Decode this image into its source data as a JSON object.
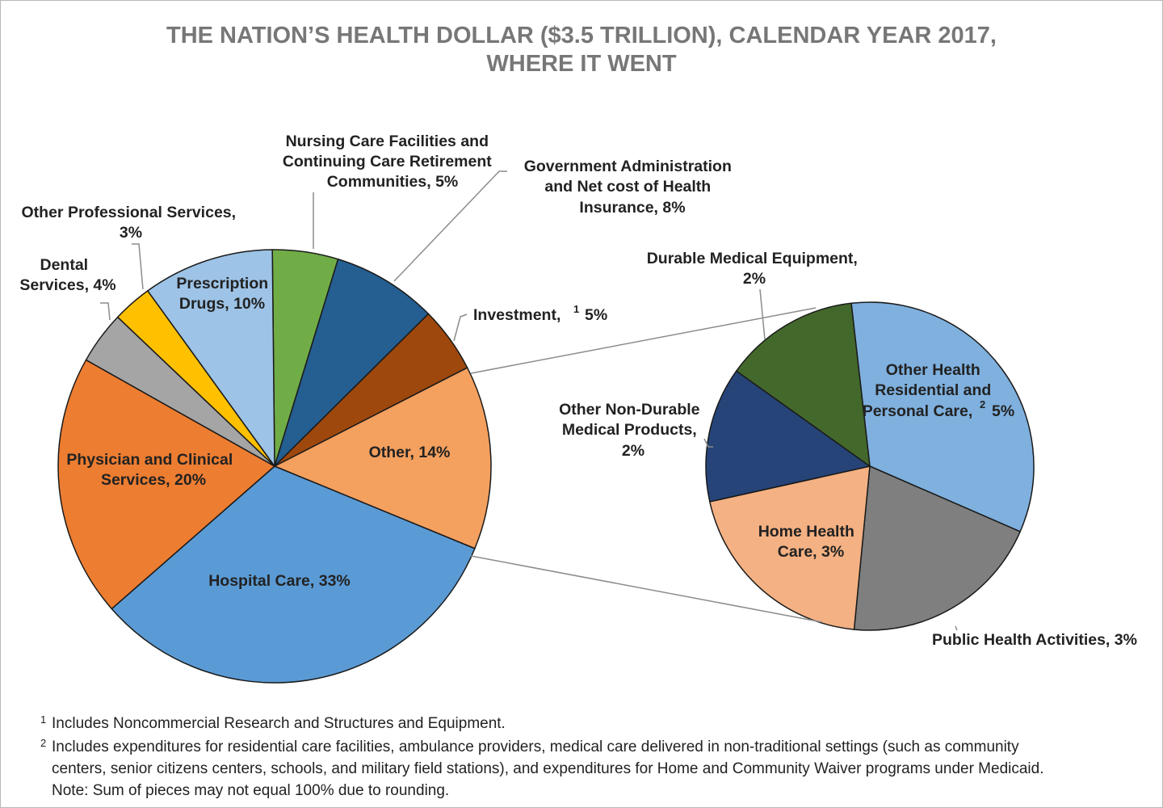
{
  "title_line1": "THE NATION’S HEALTH DOLLAR ($3.5 TRILLION), CALENDAR YEAR 2017,",
  "title_line2": "WHERE IT WENT",
  "chart_data": [
    {
      "type": "pie",
      "slices": [
        {
          "label": "Nursing Care Facilities and Continuing Care Retirement Communities, 5%",
          "value": 5,
          "color": "#70ad47"
        },
        {
          "label": "Government Administration and Net cost of Health Insurance, 8%",
          "value": 8,
          "color": "#255e91"
        },
        {
          "label": "Investment, 1 5%",
          "value": 5,
          "color": "#9e480e"
        },
        {
          "label": "Other, 14%",
          "value": 14,
          "color": "#f4a05f"
        },
        {
          "label": "Hospital Care, 33%",
          "value": 33,
          "color": "#5b9bd5"
        },
        {
          "label": "Physician and Clinical Services, 20%",
          "value": 20,
          "color": "#ed7d31"
        },
        {
          "label": "Dental Services, 4%",
          "value": 4,
          "color": "#a5a5a5"
        },
        {
          "label": "Other Professional Services, 3%",
          "value": 3,
          "color": "#ffc000"
        },
        {
          "label": "Prescription Drugs, 10%",
          "value": 10,
          "color": "#9dc3e6"
        }
      ]
    },
    {
      "type": "pie",
      "slices": [
        {
          "label": "Other Health Residential and Personal Care, 2 5%",
          "value": 5,
          "color": "#7fb0de"
        },
        {
          "label": "Public Health Activities, 3%",
          "value": 3,
          "color": "#7f7f7f"
        },
        {
          "label": "Home Health Care, 3%",
          "value": 3,
          "color": "#f4b183"
        },
        {
          "label": "Other Non-Durable Medical Products, 2%",
          "value": 2,
          "color": "#264478"
        },
        {
          "label": "Durable Medical Equipment, 2%",
          "value": 2,
          "color": "#43682b"
        }
      ]
    }
  ],
  "labels": {
    "nursing": [
      "Nursing Care Facilities and",
      "Continuing Care Retirement",
      "Communities, 5%"
    ],
    "government": [
      "Government Administration",
      "and Net cost of Health",
      "Insurance, 8%"
    ],
    "investment": "Investment,",
    "investment_sup": "1",
    "investment_pct": "5%",
    "other": "Other, 14%",
    "hospital": "Hospital Care, 33%",
    "physician": [
      "Physician and Clinical",
      "Services, 20%"
    ],
    "dental": [
      "Dental",
      "Services, 4%"
    ],
    "other_prof": [
      "Other Professional Services,",
      "3%"
    ],
    "prescription": [
      "Prescription",
      "Drugs, 10%"
    ],
    "durable": [
      "Durable Medical Equipment,",
      "2%"
    ],
    "other_health": [
      "Other Health",
      "Residential and",
      "Personal Care,"
    ],
    "other_health_sup": "2",
    "other_health_pct": "5%",
    "non_durable": [
      "Other Non-Durable",
      "Medical Products,",
      "2%"
    ],
    "home_health": [
      "Home Health",
      "Care, 3%"
    ],
    "public_health": "Public Health Activities, 3%"
  },
  "footnotes": {
    "n1_mark": "1",
    "n1": "Includes Noncommercial Research and Structures and Equipment.",
    "n2_mark": "2",
    "n2_line1": "Includes expenditures for residential care facilities, ambulance providers, medical care delivered in non-traditional settings (such as community",
    "n2_line2": "centers, senior citizens centers, schools, and military field stations), and expenditures for Home and Community Waiver programs under Medicaid.",
    "note": "Note: Sum of pieces may not equal 100% due to rounding."
  }
}
